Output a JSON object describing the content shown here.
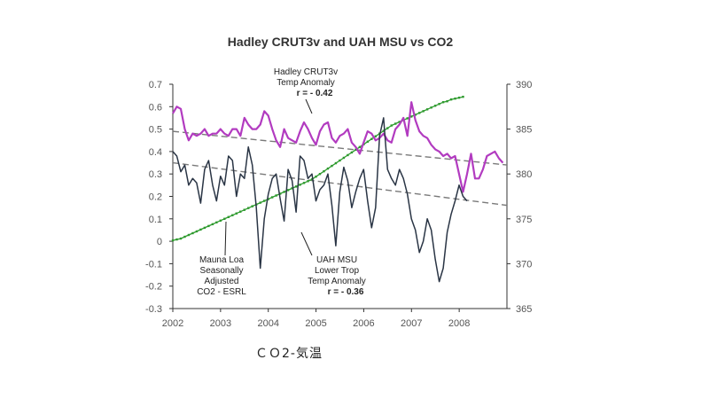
{
  "caption": "ＣＯ2-気温",
  "chart_data": {
    "type": "line",
    "title": "Hadley CRUT3v and UAH MSU vs CO2",
    "x_ticks": [
      "2002",
      "2003",
      "2004",
      "2005",
      "2006",
      "2007",
      "2008"
    ],
    "xlim": [
      2002.0,
      2009.0
    ],
    "y_left_ticks": [
      "0.7",
      "0.6",
      "0.5",
      "0.4",
      "0.3",
      "0.2",
      "0.1",
      "0",
      "-0.1",
      "-0.2",
      "-0.3"
    ],
    "ylim_left": [
      -0.3,
      0.7
    ],
    "y_right_ticks": [
      "390",
      "385",
      "380",
      "375",
      "370",
      "365"
    ],
    "ylim_right": [
      365,
      390
    ],
    "grid": false,
    "colors": {
      "hadcrut": "#b23bc0",
      "uah": "#2a3545",
      "co2": "#2e9a2e",
      "trend": "#7a7a7a"
    },
    "annotations": [
      {
        "id": "hadcrut-label",
        "lines": [
          "Hadley CRUT3v",
          "Temp Anomaly"
        ],
        "stat": "r = - 0.42"
      },
      {
        "id": "co2-label",
        "lines": [
          "Mauna Loa",
          "Seasonally",
          "Adjusted",
          "CO2 - ESRL"
        ]
      },
      {
        "id": "uah-label",
        "lines": [
          "UAH MSU",
          "Lower Trop",
          "Temp Anomaly"
        ],
        "stat": "r = - 0.36"
      }
    ],
    "series": [
      {
        "id": "hadcrut",
        "axis": "left",
        "x_start": 2002.0,
        "x_step": 0.0833,
        "values": [
          0.57,
          0.6,
          0.59,
          0.5,
          0.45,
          0.48,
          0.47,
          0.48,
          0.5,
          0.47,
          0.48,
          0.48,
          0.5,
          0.48,
          0.47,
          0.5,
          0.5,
          0.47,
          0.55,
          0.52,
          0.5,
          0.5,
          0.52,
          0.58,
          0.56,
          0.5,
          0.45,
          0.42,
          0.5,
          0.46,
          0.45,
          0.44,
          0.49,
          0.53,
          0.5,
          0.46,
          0.43,
          0.49,
          0.52,
          0.53,
          0.46,
          0.44,
          0.47,
          0.48,
          0.5,
          0.44,
          0.42,
          0.39,
          0.44,
          0.49,
          0.48,
          0.45,
          0.46,
          0.48,
          0.45,
          0.44,
          0.5,
          0.52,
          0.55,
          0.47,
          0.62,
          0.54,
          0.49,
          0.47,
          0.46,
          0.43,
          0.41,
          0.4,
          0.38,
          0.39,
          0.37,
          0.38,
          0.3,
          0.22,
          0.3,
          0.39,
          0.28,
          0.28,
          0.32,
          0.38,
          0.39,
          0.4,
          0.37,
          0.35
        ]
      },
      {
        "id": "uah",
        "axis": "left",
        "x_start": 2002.0,
        "x_step": 0.0833,
        "values": [
          0.4,
          0.38,
          0.31,
          0.34,
          0.25,
          0.28,
          0.26,
          0.17,
          0.32,
          0.36,
          0.25,
          0.18,
          0.29,
          0.25,
          0.38,
          0.36,
          0.2,
          0.3,
          0.28,
          0.42,
          0.34,
          0.15,
          -0.12,
          0.1,
          0.21,
          0.28,
          0.3,
          0.19,
          0.09,
          0.32,
          0.27,
          0.13,
          0.38,
          0.36,
          0.28,
          0.3,
          0.18,
          0.23,
          0.25,
          0.3,
          0.16,
          -0.02,
          0.22,
          0.33,
          0.27,
          0.15,
          0.22,
          0.28,
          0.32,
          0.18,
          0.06,
          0.15,
          0.47,
          0.55,
          0.32,
          0.28,
          0.25,
          0.32,
          0.28,
          0.21,
          0.1,
          0.05,
          -0.05,
          0.0,
          0.1,
          0.05,
          -0.08,
          -0.18,
          -0.12,
          0.04,
          0.12,
          0.18,
          0.25,
          0.2,
          0.18
        ]
      },
      {
        "id": "co2",
        "axis": "right",
        "x_start": 2002.0,
        "x_step": 0.0833,
        "values": [
          372.6,
          372.7,
          372.8,
          373.0,
          373.2,
          373.4,
          373.6,
          373.8,
          374.0,
          374.2,
          374.4,
          374.6,
          374.8,
          375.0,
          375.2,
          375.4,
          375.6,
          375.8,
          376.0,
          376.2,
          376.4,
          376.6,
          376.8,
          377.0,
          377.2,
          377.4,
          377.6,
          377.8,
          378.0,
          378.2,
          378.4,
          378.6,
          378.8,
          379.0,
          379.2,
          379.4,
          379.7,
          380.0,
          380.3,
          380.6,
          380.9,
          381.2,
          381.5,
          381.8,
          382.1,
          382.4,
          382.7,
          383.0,
          383.3,
          383.6,
          383.9,
          384.2,
          384.5,
          384.8,
          385.1,
          385.4,
          385.6,
          385.8,
          386.0,
          386.2,
          386.4,
          386.6,
          386.8,
          387.0,
          387.2,
          387.4,
          387.6,
          387.8,
          388.0,
          388.1,
          388.3,
          388.4,
          388.5,
          388.6
        ]
      }
    ],
    "trend_lines": [
      {
        "id": "hadcrut-trend",
        "axis": "left",
        "from": [
          2002.0,
          0.49
        ],
        "to": [
          2009.0,
          0.34
        ]
      },
      {
        "id": "uah-trend",
        "axis": "left",
        "from": [
          2002.0,
          0.35
        ],
        "to": [
          2009.0,
          0.16
        ]
      }
    ]
  }
}
